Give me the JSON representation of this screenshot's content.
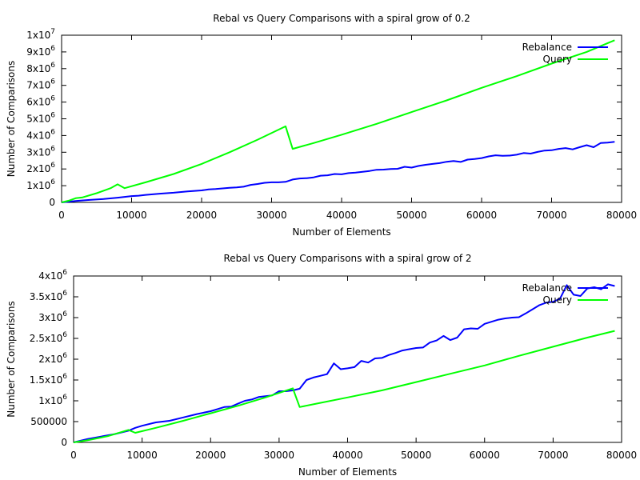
{
  "chart_data": [
    {
      "type": "line",
      "title": "Rebal vs Query Comparisons with a spiral grow of 0.2",
      "xlabel": "Number of Elements",
      "ylabel": "Number of Comparisons",
      "xlim": [
        0,
        80000
      ],
      "ylim": [
        0,
        10000000
      ],
      "x_ticks": [
        0,
        10000,
        20000,
        30000,
        40000,
        50000,
        60000,
        70000,
        80000
      ],
      "x_tick_labels": [
        "0",
        "10000",
        "20000",
        "30000",
        "40000",
        "50000",
        "60000",
        "70000",
        "80000"
      ],
      "y_ticks": [
        {
          "value": 0,
          "mantissa": "0",
          "exp": ""
        },
        {
          "value": 1000000,
          "mantissa": "1x10",
          "exp": "6"
        },
        {
          "value": 2000000,
          "mantissa": "2x10",
          "exp": "6"
        },
        {
          "value": 3000000,
          "mantissa": "3x10",
          "exp": "6"
        },
        {
          "value": 4000000,
          "mantissa": "4x10",
          "exp": "6"
        },
        {
          "value": 5000000,
          "mantissa": "5x10",
          "exp": "6"
        },
        {
          "value": 6000000,
          "mantissa": "6x10",
          "exp": "6"
        },
        {
          "value": 7000000,
          "mantissa": "7x10",
          "exp": "6"
        },
        {
          "value": 8000000,
          "mantissa": "8x10",
          "exp": "6"
        },
        {
          "value": 9000000,
          "mantissa": "9x10",
          "exp": "6"
        },
        {
          "value": 10000000,
          "mantissa": "1x10",
          "exp": "7"
        }
      ],
      "grid": false,
      "legend_position": "top-right",
      "series": [
        {
          "name": "Rebalance",
          "color": "#0000ff",
          "x": [
            0,
            2000,
            4000,
            6000,
            8000,
            9000,
            10000,
            11000,
            12000,
            14000,
            16000,
            18000,
            20000,
            21000,
            22000,
            24000,
            25000,
            26000,
            27000,
            28000,
            29000,
            30000,
            31000,
            32000,
            33000,
            34000,
            35000,
            36000,
            37000,
            38000,
            39000,
            40000,
            41000,
            42000,
            43000,
            44000,
            45000,
            46000,
            47000,
            48000,
            49000,
            50000,
            51000,
            52000,
            53000,
            54000,
            55000,
            56000,
            57000,
            58000,
            59000,
            60000,
            61000,
            62000,
            63000,
            64000,
            65000,
            66000,
            67000,
            68000,
            69000,
            70000,
            71000,
            72000,
            73000,
            74000,
            75000,
            76000,
            77000,
            78000,
            79000
          ],
          "y": [
            0,
            80000,
            150000,
            200000,
            280000,
            330000,
            380000,
            400000,
            450000,
            520000,
            580000,
            660000,
            720000,
            780000,
            800000,
            870000,
            900000,
            940000,
            1050000,
            1100000,
            1170000,
            1200000,
            1200000,
            1230000,
            1370000,
            1430000,
            1450000,
            1500000,
            1600000,
            1620000,
            1700000,
            1680000,
            1750000,
            1780000,
            1830000,
            1880000,
            1950000,
            1960000,
            2000000,
            2010000,
            2130000,
            2080000,
            2180000,
            2250000,
            2300000,
            2350000,
            2430000,
            2480000,
            2420000,
            2560000,
            2600000,
            2650000,
            2750000,
            2820000,
            2790000,
            2800000,
            2850000,
            2950000,
            2920000,
            3020000,
            3100000,
            3120000,
            3200000,
            3250000,
            3170000,
            3300000,
            3420000,
            3300000,
            3550000,
            3580000,
            3620000
          ]
        },
        {
          "name": "Query",
          "color": "#00ff00",
          "x": [
            0,
            1000,
            2000,
            3000,
            5000,
            7000,
            8000,
            9000,
            12000,
            16000,
            20000,
            24000,
            28000,
            32000,
            33000,
            36000,
            40000,
            45000,
            50000,
            55000,
            60000,
            65000,
            70000,
            75000,
            79000
          ],
          "y": [
            0,
            100000,
            250000,
            300000,
            550000,
            850000,
            1080000,
            850000,
            1200000,
            1700000,
            2300000,
            3000000,
            3750000,
            4550000,
            3200000,
            3550000,
            4050000,
            4700000,
            5400000,
            6100000,
            6850000,
            7550000,
            8300000,
            9000000,
            9700000
          ]
        }
      ]
    },
    {
      "type": "line",
      "title": "Rebal vs Query Comparisons with a spiral grow of 2",
      "xlabel": "Number of Elements",
      "ylabel": "Number of Comparisons",
      "xlim": [
        0,
        80000
      ],
      "ylim": [
        0,
        4000000
      ],
      "x_ticks": [
        0,
        10000,
        20000,
        30000,
        40000,
        50000,
        60000,
        70000,
        80000
      ],
      "x_tick_labels": [
        "0",
        "10000",
        "20000",
        "30000",
        "40000",
        "50000",
        "60000",
        "70000",
        "80000"
      ],
      "y_ticks": [
        {
          "value": 0,
          "mantissa": "0",
          "exp": ""
        },
        {
          "value": 500000,
          "mantissa": "500000",
          "exp": ""
        },
        {
          "value": 1000000,
          "mantissa": "1x10",
          "exp": "6"
        },
        {
          "value": 1500000,
          "mantissa": "1.5x10",
          "exp": "6"
        },
        {
          "value": 2000000,
          "mantissa": "2x10",
          "exp": "6"
        },
        {
          "value": 2500000,
          "mantissa": "2.5x10",
          "exp": "6"
        },
        {
          "value": 3000000,
          "mantissa": "3x10",
          "exp": "6"
        },
        {
          "value": 3500000,
          "mantissa": "3.5x10",
          "exp": "6"
        },
        {
          "value": 4000000,
          "mantissa": "4x10",
          "exp": "6"
        }
      ],
      "grid": false,
      "legend_position": "top-right",
      "series": [
        {
          "name": "Rebalance",
          "color": "#0000ff",
          "x": [
            0,
            2000,
            4000,
            6000,
            8000,
            9000,
            10000,
            12000,
            13000,
            14000,
            16000,
            18000,
            20000,
            21000,
            22000,
            23000,
            24000,
            25000,
            26000,
            27000,
            28000,
            29000,
            30000,
            31000,
            32000,
            33000,
            34000,
            35000,
            36000,
            37000,
            38000,
            39000,
            40000,
            41000,
            42000,
            43000,
            44000,
            45000,
            46000,
            47000,
            48000,
            49000,
            50000,
            51000,
            52000,
            53000,
            54000,
            55000,
            56000,
            57000,
            58000,
            59000,
            60000,
            61000,
            62000,
            63000,
            64000,
            65000,
            66000,
            67000,
            68000,
            69000,
            70000,
            71000,
            72000,
            73000,
            74000,
            75000,
            76000,
            77000,
            78000,
            79000
          ],
          "y": [
            0,
            80000,
            140000,
            200000,
            280000,
            350000,
            400000,
            480000,
            500000,
            520000,
            600000,
            680000,
            750000,
            800000,
            850000,
            860000,
            930000,
            1000000,
            1030000,
            1090000,
            1110000,
            1130000,
            1230000,
            1230000,
            1250000,
            1290000,
            1500000,
            1560000,
            1600000,
            1640000,
            1900000,
            1760000,
            1780000,
            1810000,
            1960000,
            1920000,
            2020000,
            2030000,
            2100000,
            2150000,
            2210000,
            2240000,
            2270000,
            2280000,
            2400000,
            2450000,
            2560000,
            2460000,
            2520000,
            2720000,
            2740000,
            2730000,
            2850000,
            2900000,
            2950000,
            2980000,
            3000000,
            3010000,
            3100000,
            3200000,
            3300000,
            3360000,
            3380000,
            3450000,
            3780000,
            3550000,
            3520000,
            3700000,
            3730000,
            3680000,
            3800000,
            3760000
          ]
        },
        {
          "name": "Query",
          "color": "#00ff00",
          "x": [
            0,
            2000,
            5000,
            8000,
            9000,
            12000,
            16000,
            20000,
            24000,
            28000,
            32000,
            33000,
            36000,
            40000,
            45000,
            50000,
            55000,
            60000,
            65000,
            70000,
            75000,
            79000
          ],
          "y": [
            0,
            50000,
            150000,
            300000,
            230000,
            350000,
            520000,
            700000,
            880000,
            1080000,
            1300000,
            850000,
            950000,
            1080000,
            1250000,
            1450000,
            1650000,
            1850000,
            2080000,
            2300000,
            2520000,
            2680000
          ]
        }
      ]
    }
  ]
}
